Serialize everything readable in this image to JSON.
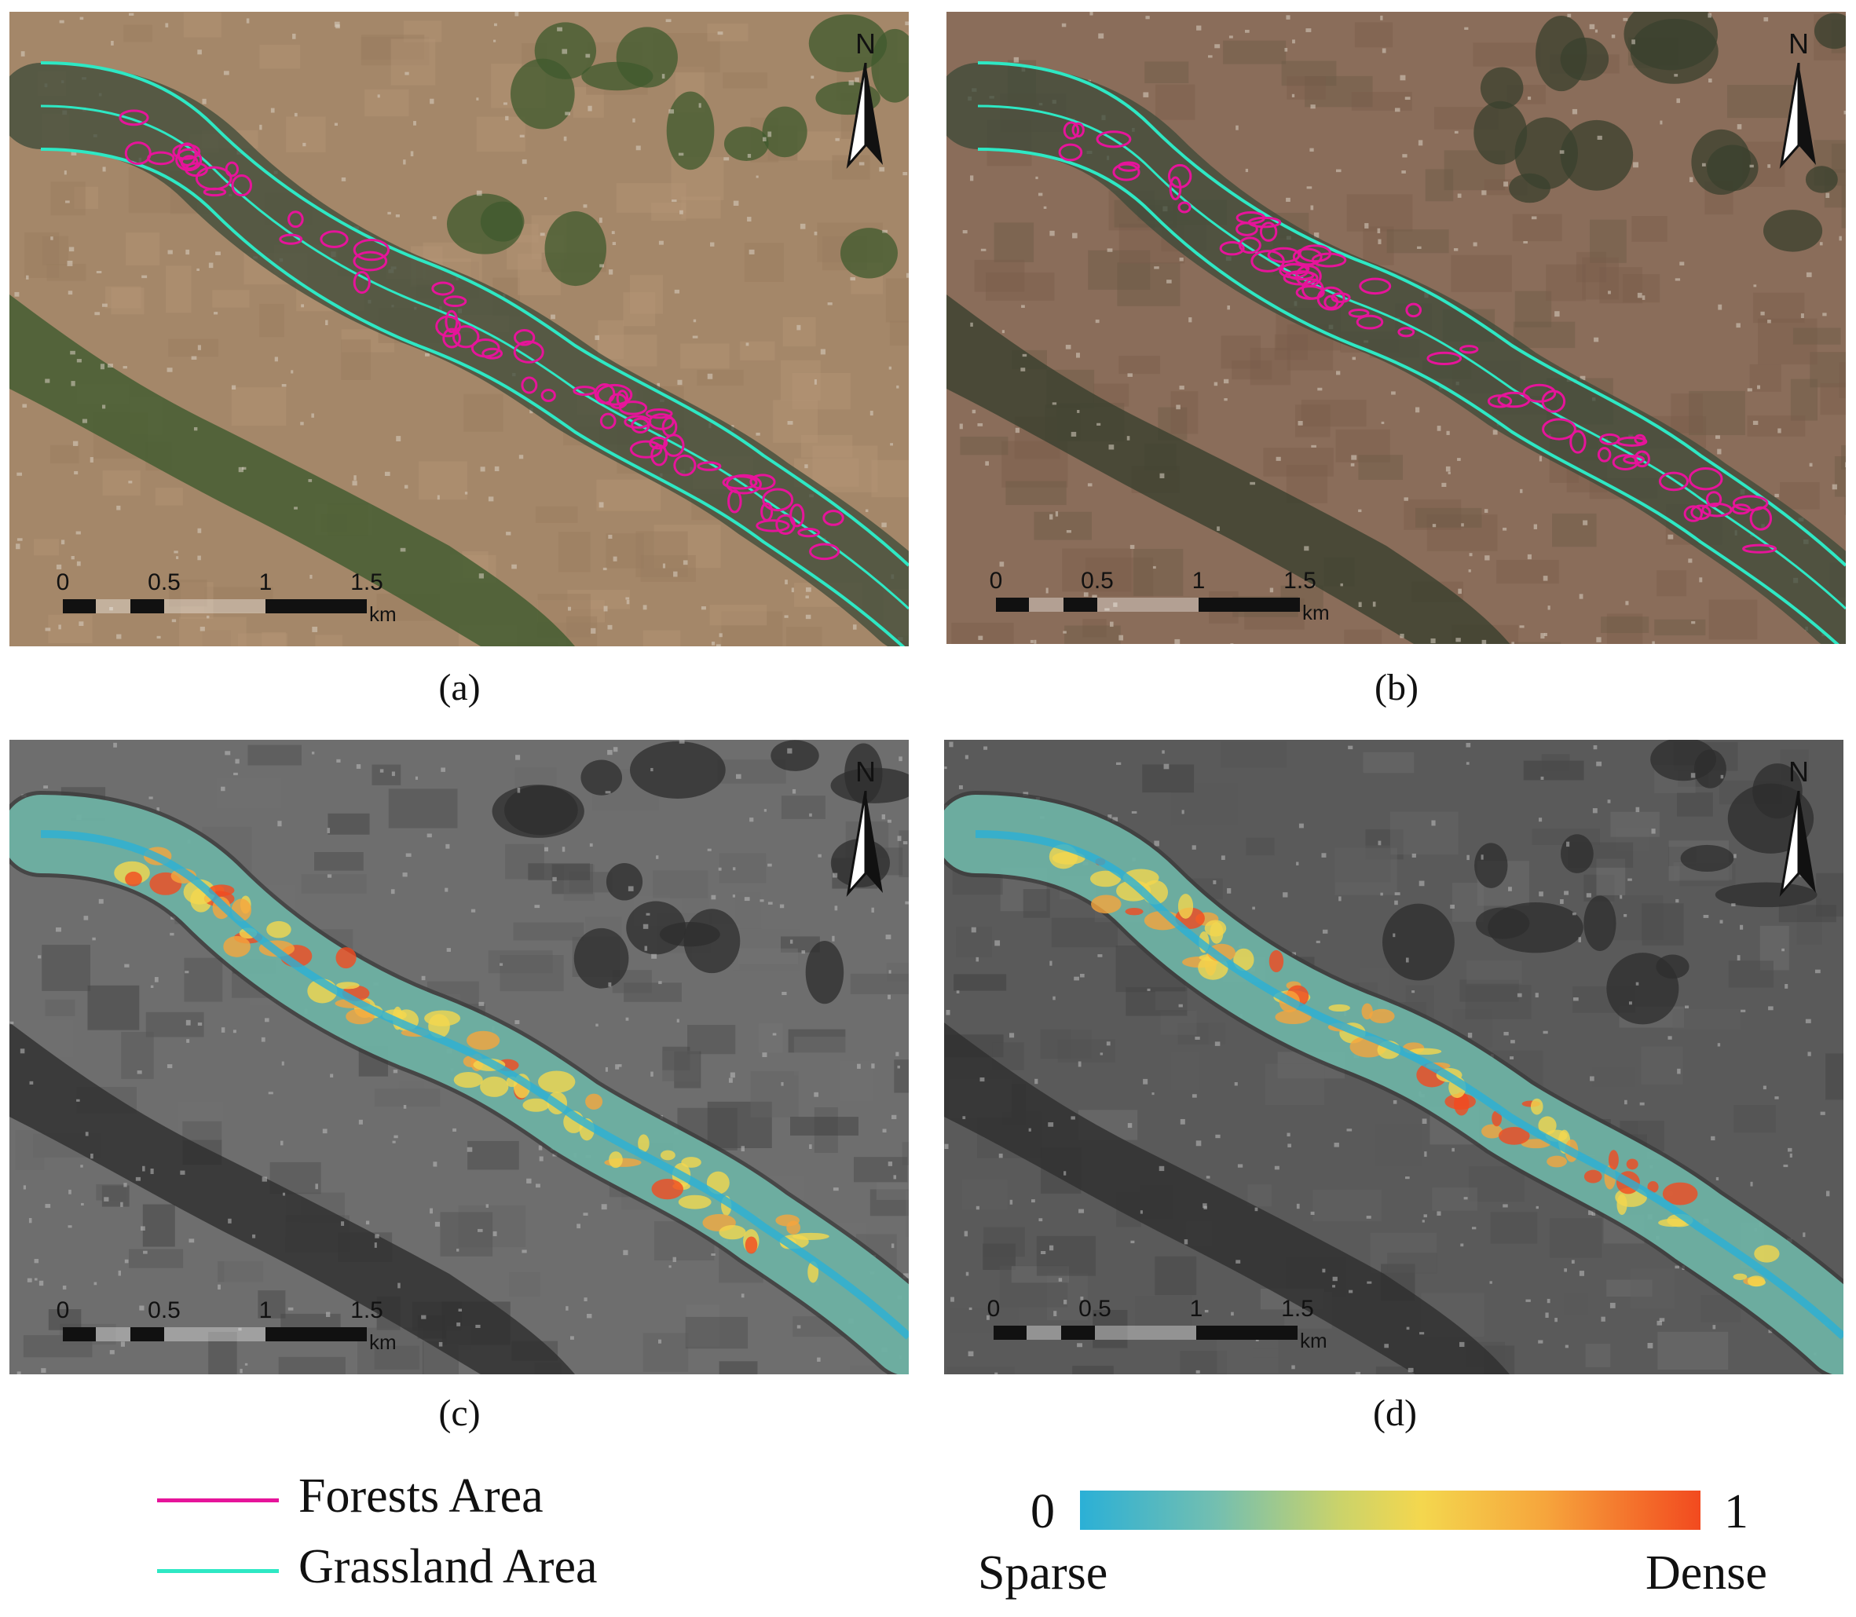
{
  "panels": [
    {
      "id": "a",
      "caption": "(a)",
      "style": "color",
      "forests_outline": true
    },
    {
      "id": "b",
      "caption": "(b)",
      "style": "color-dark",
      "forests_outline": true
    },
    {
      "id": "c",
      "caption": "(c)",
      "style": "grey-density"
    },
    {
      "id": "d",
      "caption": "(d)",
      "style": "grey-density"
    }
  ],
  "north_arrow": {
    "label": "N"
  },
  "scale_bar": {
    "labels": [
      "0",
      "0.5",
      "1",
      "1.5"
    ],
    "unit": "km"
  },
  "legend": {
    "items": [
      {
        "label": "Forests Area",
        "color": "#e6149a"
      },
      {
        "label": "Grassland Area",
        "color": "#2ee8c4"
      }
    ]
  },
  "colorbar": {
    "min_label": "0",
    "max_label": "1",
    "low_label": "Sparse",
    "high_label": "Dense",
    "colors": [
      "#2bb0d6",
      "#cbd36a",
      "#f4d74e",
      "#f24a1f"
    ]
  },
  "colors": {
    "forest": "#e6149a",
    "grassland": "#2ee8c4",
    "river": "#2f4a3a"
  }
}
